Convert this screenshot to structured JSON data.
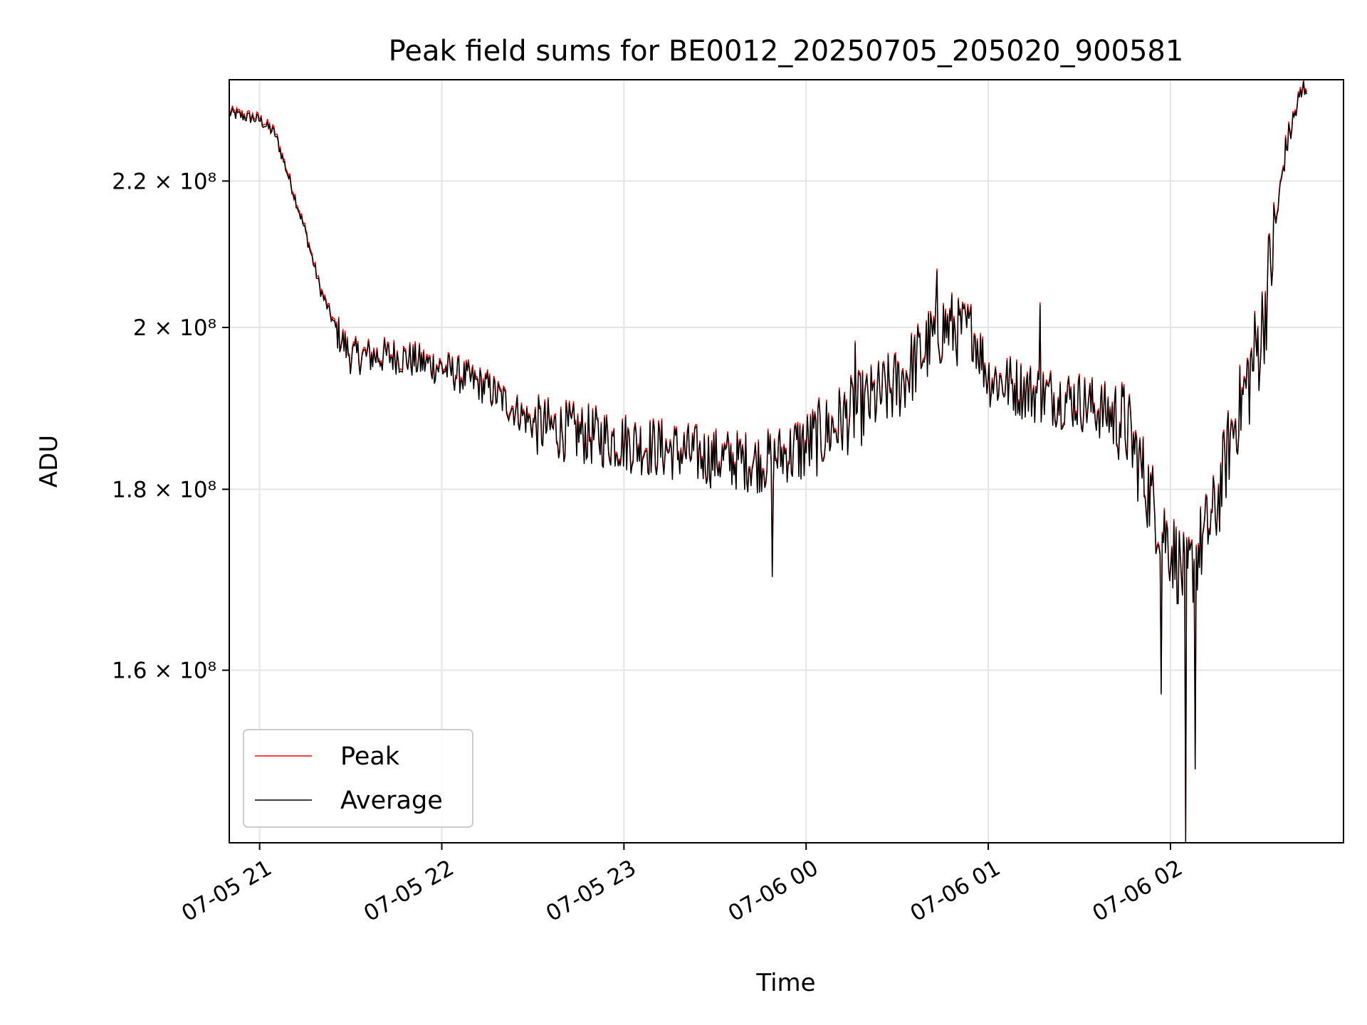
{
  "chart_data": {
    "type": "line",
    "title": "Peak field sums for BE0012_20250705_205020_900581",
    "xlabel": "Time",
    "ylabel": "ADU",
    "yscale": "log",
    "grid": true,
    "legend_position": "lower-left",
    "x_ticks": [
      "07-05 21",
      "07-05 22",
      "07-05 23",
      "07-06 00",
      "07-06 01",
      "07-06 02"
    ],
    "y_ticks": [
      {
        "value": 220000000,
        "label": "2.2 × 10⁸"
      },
      {
        "value": 200000000,
        "label": "2 × 10⁸"
      },
      {
        "value": 180000000,
        "label": "1.8 × 10⁸"
      },
      {
        "value": 160000000,
        "label": "1.6 × 10⁸"
      }
    ],
    "xlim": [
      "2025-07-05 20:50",
      "2025-07-06 02:57"
    ],
    "ylim": [
      143000000,
      235000000
    ],
    "series": [
      {
        "name": "Peak",
        "color": "#ff0000"
      },
      {
        "name": "Average",
        "color": "#000000"
      }
    ],
    "anchor_points": [
      {
        "t": "2025-07-05 20:50",
        "v": 230000000
      },
      {
        "t": "2025-07-05 21:00",
        "v": 229000000
      },
      {
        "t": "2025-07-05 21:05",
        "v": 227000000
      },
      {
        "t": "2025-07-05 21:10",
        "v": 220000000
      },
      {
        "t": "2025-07-05 21:15",
        "v": 213000000
      },
      {
        "t": "2025-07-05 21:20",
        "v": 205000000
      },
      {
        "t": "2025-07-05 21:25",
        "v": 200000000
      },
      {
        "t": "2025-07-05 21:30",
        "v": 196500000
      },
      {
        "t": "2025-07-05 21:45",
        "v": 196500000
      },
      {
        "t": "2025-07-05 22:00",
        "v": 195000000
      },
      {
        "t": "2025-07-05 22:15",
        "v": 192500000
      },
      {
        "t": "2025-07-05 22:30",
        "v": 188000000
      },
      {
        "t": "2025-07-05 22:45",
        "v": 187000000
      },
      {
        "t": "2025-07-05 23:00",
        "v": 186000000
      },
      {
        "t": "2025-07-05 23:15",
        "v": 185000000
      },
      {
        "t": "2025-07-05 23:30",
        "v": 184000000
      },
      {
        "t": "2025-07-05 23:45",
        "v": 183500000
      },
      {
        "t": "2025-07-06 00:00",
        "v": 185500000
      },
      {
        "t": "2025-07-06 00:15",
        "v": 189500000
      },
      {
        "t": "2025-07-06 00:30",
        "v": 193000000
      },
      {
        "t": "2025-07-06 00:45",
        "v": 200500000
      },
      {
        "t": "2025-07-06 00:55",
        "v": 200000000
      },
      {
        "t": "2025-07-06 01:00",
        "v": 194000000
      },
      {
        "t": "2025-07-06 01:15",
        "v": 192000000
      },
      {
        "t": "2025-07-06 01:30",
        "v": 191000000
      },
      {
        "t": "2025-07-06 01:45",
        "v": 188500000
      },
      {
        "t": "2025-07-06 01:55",
        "v": 178000000
      },
      {
        "t": "2025-07-06 02:05",
        "v": 170000000
      },
      {
        "t": "2025-07-06 02:15",
        "v": 178000000
      },
      {
        "t": "2025-07-06 02:20",
        "v": 187000000
      },
      {
        "t": "2025-07-06 02:25",
        "v": 193000000
      },
      {
        "t": "2025-07-06 02:30",
        "v": 200000000
      },
      {
        "t": "2025-07-06 02:35",
        "v": 215000000
      },
      {
        "t": "2025-07-06 02:38",
        "v": 225000000
      },
      {
        "t": "2025-07-06 02:42",
        "v": 231500000
      },
      {
        "t": "2025-07-06 02:45",
        "v": 235000000
      }
    ],
    "notable_points": [
      {
        "t": "2025-07-06 00:43",
        "v": 207500000
      },
      {
        "t": "2025-07-06 00:16",
        "v": 198000000
      },
      {
        "t": "2025-07-06 01:17",
        "v": 203000000
      },
      {
        "t": "2025-07-05 23:49",
        "v": 170000000
      },
      {
        "t": "2025-07-06 01:57",
        "v": 157500000
      },
      {
        "t": "2025-07-06 02:05",
        "v": 143000000
      },
      {
        "t": "2025-07-06 02:08",
        "v": 150000000
      }
    ]
  }
}
